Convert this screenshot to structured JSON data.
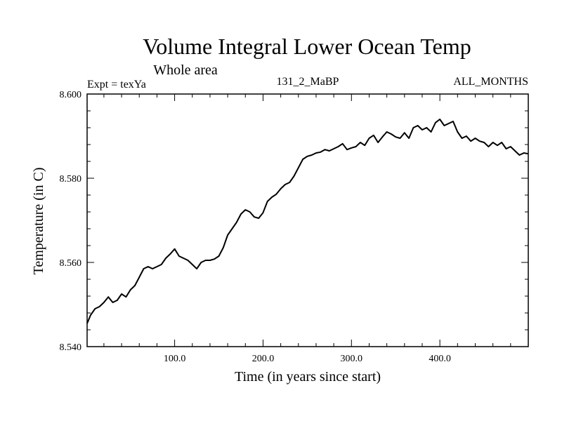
{
  "chart_data": {
    "type": "line",
    "title": "Volume Integral Lower Ocean Temp",
    "subtitle": "Whole area",
    "expt_label": "Expt = texYa",
    "run_label": "131_2_MaBP",
    "months_label": "ALL_MONTHS",
    "xlabel": "Time (in years since start)",
    "ylabel": "Temperature (in C)",
    "xlim": [
      1,
      500
    ],
    "ylim": [
      8.54,
      8.6
    ],
    "x_ticks": [
      100,
      200,
      300,
      400
    ],
    "x_tick_labels": [
      "100.0",
      "200.0",
      "300.0",
      "400.0"
    ],
    "y_ticks": [
      8.54,
      8.56,
      8.58,
      8.6
    ],
    "y_tick_labels": [
      "8.540",
      "8.560",
      "8.580",
      "8.600"
    ],
    "grid": false,
    "series": [
      {
        "color": "#000000",
        "x": [
          1,
          5,
          10,
          15,
          20,
          25,
          30,
          35,
          40,
          45,
          50,
          55,
          60,
          65,
          70,
          75,
          80,
          85,
          90,
          95,
          100,
          105,
          110,
          115,
          120,
          125,
          130,
          135,
          140,
          145,
          150,
          155,
          160,
          165,
          170,
          175,
          180,
          185,
          190,
          195,
          200,
          205,
          210,
          215,
          220,
          225,
          230,
          235,
          240,
          245,
          250,
          255,
          260,
          265,
          270,
          275,
          280,
          285,
          290,
          295,
          300,
          305,
          310,
          315,
          320,
          325,
          330,
          335,
          340,
          345,
          350,
          355,
          360,
          365,
          370,
          375,
          380,
          385,
          390,
          395,
          400,
          405,
          410,
          415,
          420,
          425,
          430,
          435,
          440,
          445,
          450,
          455,
          460,
          465,
          470,
          475,
          480,
          485,
          490,
          495,
          500
        ],
        "y": [
          8.5455,
          8.5475,
          8.549,
          8.5495,
          8.5505,
          8.5518,
          8.5505,
          8.551,
          8.5525,
          8.5518,
          8.5535,
          8.5545,
          8.5565,
          8.5585,
          8.559,
          8.5585,
          8.559,
          8.5595,
          8.561,
          8.562,
          8.5632,
          8.5615,
          8.561,
          8.5605,
          8.5595,
          8.5585,
          8.56,
          8.5605,
          8.5605,
          8.5608,
          8.5615,
          8.5635,
          8.5665,
          8.568,
          8.5695,
          8.5715,
          8.5725,
          8.572,
          8.5708,
          8.5705,
          8.5718,
          8.5745,
          8.5755,
          8.5762,
          8.5775,
          8.5785,
          8.579,
          8.5805,
          8.5825,
          8.5845,
          8.5852,
          8.5855,
          8.586,
          8.5862,
          8.5868,
          8.5865,
          8.587,
          8.5875,
          8.5882,
          8.5868,
          8.5872,
          8.5875,
          8.5885,
          8.5878,
          8.5895,
          8.5902,
          8.5885,
          8.5898,
          8.591,
          8.5905,
          8.5898,
          8.5895,
          8.5908,
          8.5895,
          8.592,
          8.5925,
          8.5915,
          8.592,
          8.591,
          8.5932,
          8.594,
          8.5925,
          8.593,
          8.5935,
          8.591,
          8.5895,
          8.59,
          8.5888,
          8.5895,
          8.5888,
          8.5885,
          8.5875,
          8.5885,
          8.5878,
          8.5885,
          8.587,
          8.5875,
          8.5865,
          8.5855,
          8.586,
          8.5858
        ]
      }
    ]
  }
}
